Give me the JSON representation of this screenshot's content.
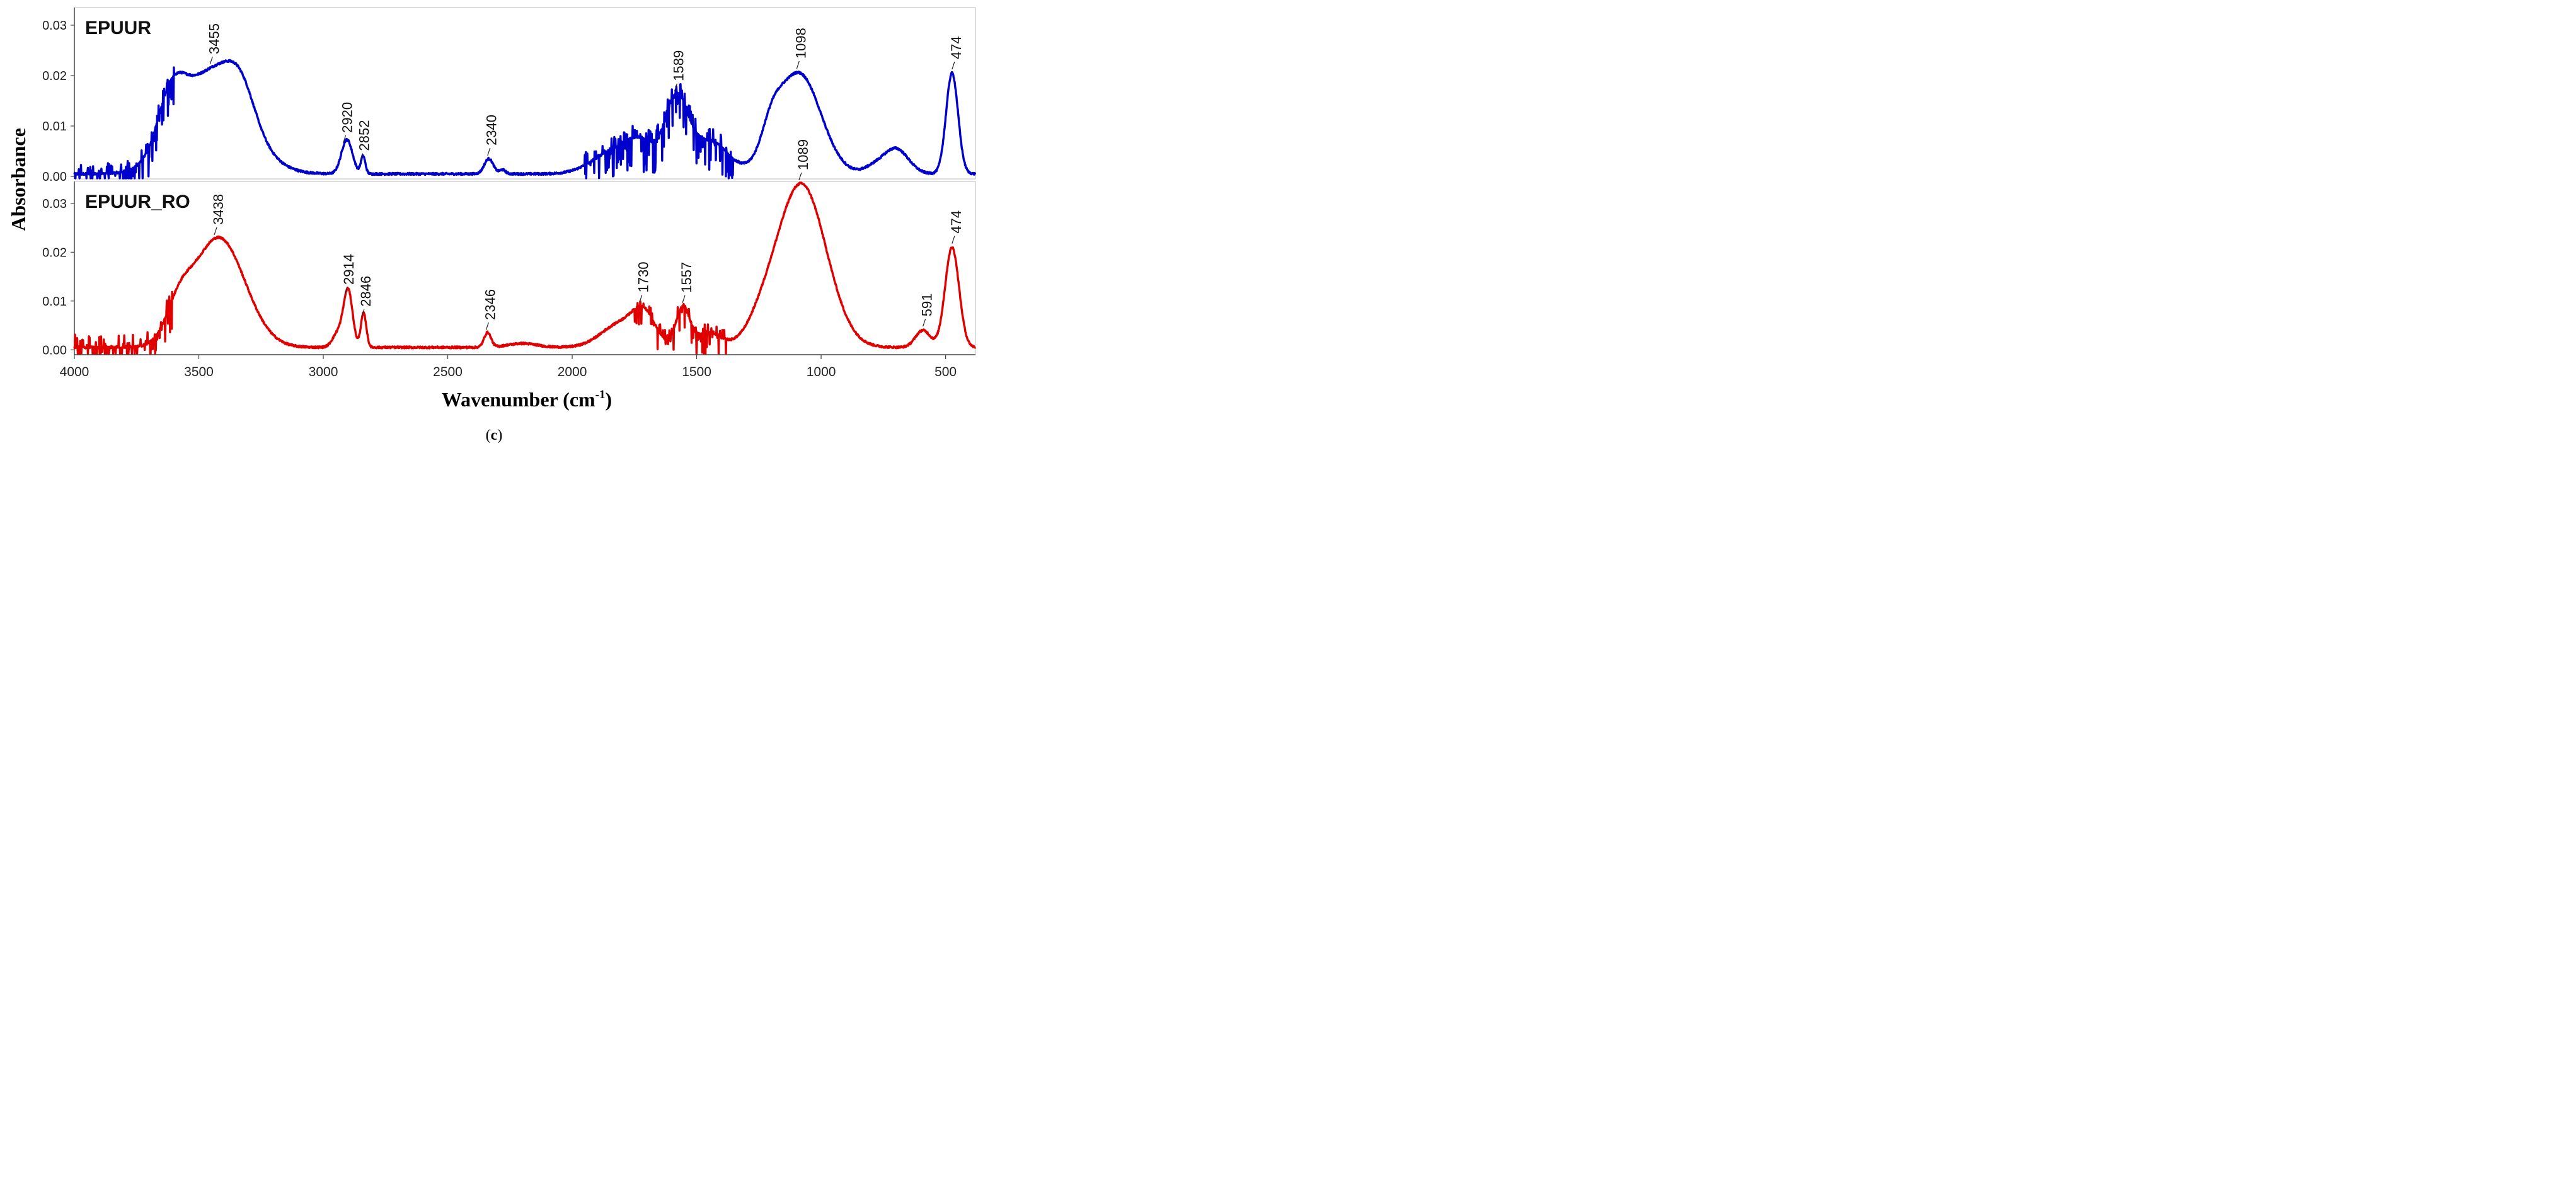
{
  "chart_data": {
    "type": "line",
    "xlabel": "Wavenumber (cm",
    "xlabel_sup": "-1",
    "xlabel_close": ")",
    "ylabel": "Absorbance",
    "caption_open": "(",
    "caption_letter": "c",
    "caption_close": ")",
    "xlim": [
      4000,
      380
    ],
    "x_ticks": [
      4000,
      3500,
      3000,
      2500,
      2000,
      1500,
      1000,
      500
    ],
    "x_tick_labels": [
      "4000",
      "3500",
      "3000",
      "2500",
      "2000",
      "1500",
      "1000",
      "500"
    ],
    "panels": [
      {
        "name": "EPUUR",
        "color": "#0000cc",
        "ylim": [
          -0.0005,
          0.0335
        ],
        "y_ticks": [
          0,
          0.01,
          0.02,
          0.03
        ],
        "y_tick_labels": [
          "0.00",
          "0.01",
          "0.02",
          "0.03"
        ],
        "baseline": 0.0005,
        "peaks": [
          {
            "x": 3440,
            "h": 0.0205,
            "w": 130
          },
          {
            "x": 3610,
            "h": 0.01,
            "w": 55
          },
          {
            "x": 3330,
            "h": 0.006,
            "w": 55
          },
          {
            "x": 2905,
            "h": 0.0068,
            "w": 22
          },
          {
            "x": 2840,
            "h": 0.0035,
            "w": 9
          },
          {
            "x": 2335,
            "h": 0.003,
            "w": 18
          },
          {
            "x": 2280,
            "h": 0.0008,
            "w": 12
          },
          {
            "x": 1840,
            "h": 0.004,
            "w": 85
          },
          {
            "x": 1720,
            "h": 0.0055,
            "w": 65
          },
          {
            "x": 1580,
            "h": 0.014,
            "w": 45
          },
          {
            "x": 1450,
            "h": 0.0065,
            "w": 75
          },
          {
            "x": 1090,
            "h": 0.02,
            "w": 88
          },
          {
            "x": 1200,
            "h": 0.005,
            "w": 40
          },
          {
            "x": 790,
            "h": 0.0012,
            "w": 40
          },
          {
            "x": 700,
            "h": 0.005,
            "w": 50
          },
          {
            "x": 474,
            "h": 0.02,
            "w": 24
          }
        ],
        "noise_regions": [
          {
            "from": 4000,
            "to": 3600,
            "amp": 0.0045
          },
          {
            "from": 1950,
            "to": 1350,
            "amp": 0.005
          }
        ],
        "annotations": [
          {
            "label": "3455",
            "x": 3455
          },
          {
            "label": "2920",
            "x": 2920
          },
          {
            "label": "2852",
            "x": 2852
          },
          {
            "label": "2340",
            "x": 2340
          },
          {
            "label": "1589",
            "x": 1589
          },
          {
            "label": "1098",
            "x": 1098
          },
          {
            "label": "474",
            "x": 474
          }
        ]
      },
      {
        "name": "EPUUR_RO",
        "color": "#e00000",
        "ylim": [
          -0.001,
          0.0345
        ],
        "y_ticks": [
          0,
          0.01,
          0.02,
          0.03
        ],
        "y_tick_labels": [
          "0.00",
          "0.01",
          "0.02",
          "0.03"
        ],
        "baseline": 0.0005,
        "peaks": [
          {
            "x": 3420,
            "h": 0.0225,
            "w": 105
          },
          {
            "x": 3580,
            "h": 0.006,
            "w": 50
          },
          {
            "x": 2900,
            "h": 0.0115,
            "w": 18
          },
          {
            "x": 2940,
            "h": 0.003,
            "w": 22
          },
          {
            "x": 2838,
            "h": 0.007,
            "w": 11
          },
          {
            "x": 2340,
            "h": 0.003,
            "w": 14
          },
          {
            "x": 2200,
            "h": 0.0008,
            "w": 60
          },
          {
            "x": 1800,
            "h": 0.005,
            "w": 80
          },
          {
            "x": 1710,
            "h": 0.0055,
            "w": 45
          },
          {
            "x": 1555,
            "h": 0.008,
            "w": 28
          },
          {
            "x": 1450,
            "h": 0.003,
            "w": 50
          },
          {
            "x": 1080,
            "h": 0.0335,
            "w": 100
          },
          {
            "x": 1240,
            "h": 0.003,
            "w": 60
          },
          {
            "x": 591,
            "h": 0.0035,
            "w": 30
          },
          {
            "x": 474,
            "h": 0.0205,
            "w": 28
          }
        ],
        "noise_regions": [
          {
            "from": 4000,
            "to": 3600,
            "amp": 0.005
          },
          {
            "from": 1750,
            "to": 1380,
            "amp": 0.0035
          }
        ],
        "annotations": [
          {
            "label": "3438",
            "x": 3438
          },
          {
            "label": "2914",
            "x": 2914
          },
          {
            "label": "2846",
            "x": 2846
          },
          {
            "label": "2346",
            "x": 2346
          },
          {
            "label": "1730",
            "x": 1730
          },
          {
            "label": "1557",
            "x": 1557
          },
          {
            "label": "1089",
            "x": 1089
          },
          {
            "label": "591",
            "x": 591
          },
          {
            "label": "474",
            "x": 474
          }
        ]
      }
    ]
  }
}
